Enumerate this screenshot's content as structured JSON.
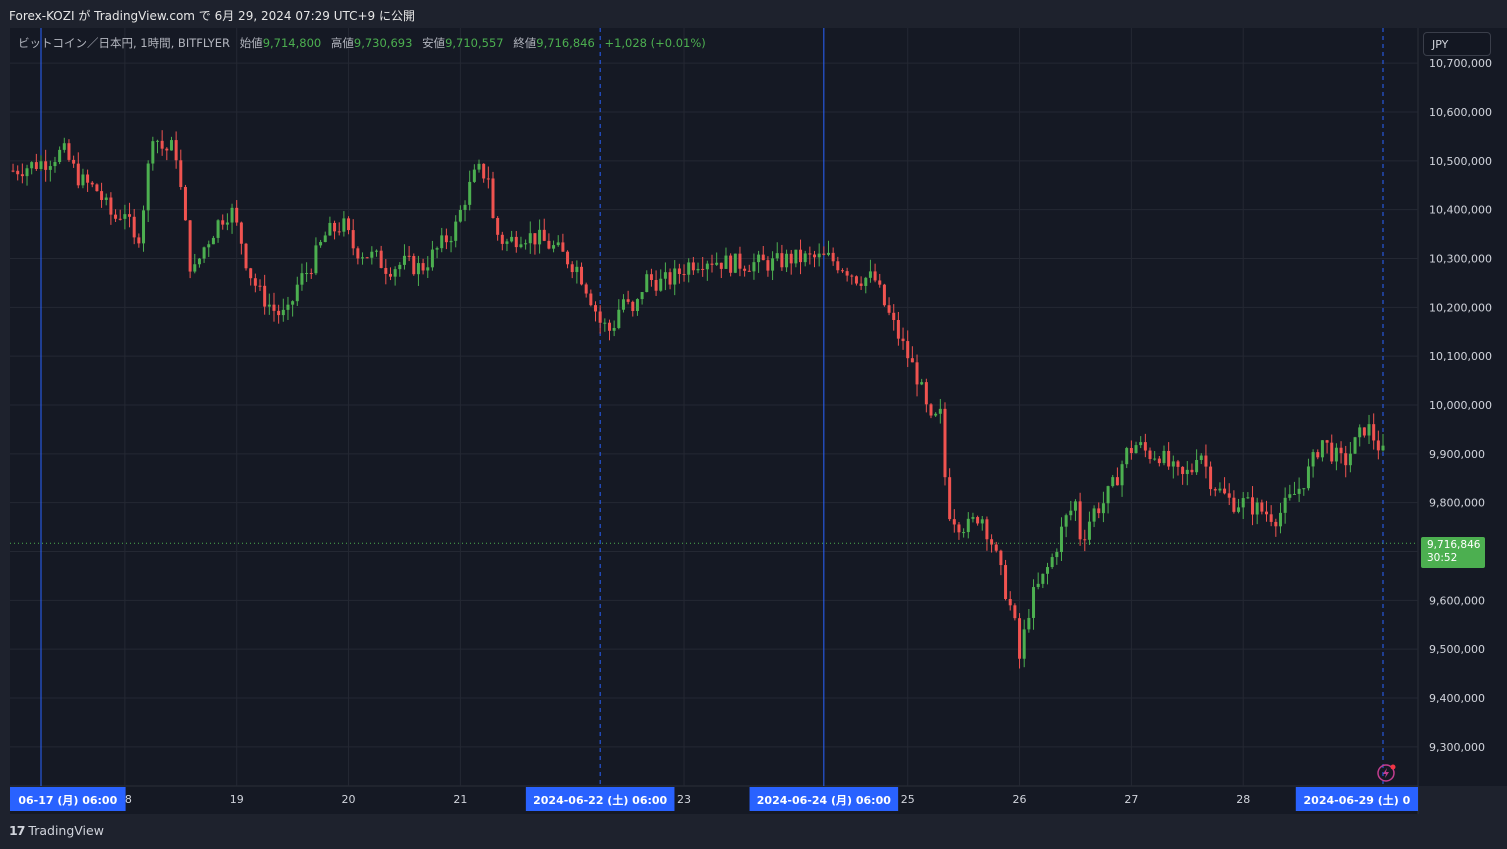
{
  "header": {
    "publisher_line": "Forex-KOZI が TradingView.com で 6月 29, 2024 07:29 UTC+9 に公開"
  },
  "legend": {
    "symbol": "ビットコイン／日本円, 1時間, BITFLYER",
    "open_label": "始値",
    "open": "9,714,800",
    "high_label": "高値",
    "high": "9,730,693",
    "low_label": "安値",
    "low": "9,710,557",
    "close_label": "終値",
    "close": "9,716,846",
    "change": "+1,028 (+0.01%)"
  },
  "currency_button": "JPY",
  "price_tag": {
    "price": "9,716,846",
    "countdown": "30:52"
  },
  "footer": {
    "logo": "17",
    "brand": "TradingView"
  },
  "chart_data": {
    "type": "candlestick",
    "y_axis_labels": [
      "10,700,000",
      "10,600,000",
      "10,500,000",
      "10,400,000",
      "10,300,000",
      "10,200,000",
      "10,100,000",
      "10,000,000",
      "9,900,000",
      "9,800,000",
      "9,700,000",
      "9,600,000",
      "9,500,000",
      "9,400,000",
      "9,300,000"
    ],
    "y_axis_values": [
      10700000,
      10600000,
      10500000,
      10400000,
      10300000,
      10200000,
      10100000,
      10000000,
      9900000,
      9800000,
      9700000,
      9600000,
      9500000,
      9400000,
      9300000
    ],
    "ylim": [
      9225000,
      10730000
    ],
    "x_tick_labels": [
      {
        "label": "18",
        "day": 18
      },
      {
        "label": "19",
        "day": 19
      },
      {
        "label": "20",
        "day": 20
      },
      {
        "label": "21",
        "day": 21
      },
      {
        "label": "23",
        "day": 23
      },
      {
        "label": "25",
        "day": 25
      },
      {
        "label": "26",
        "day": 26
      },
      {
        "label": "27",
        "day": 27
      },
      {
        "label": "28",
        "day": 28
      }
    ],
    "x_highlight_labels": [
      {
        "label": "06-17 (月)  06:00",
        "day": 17.25
      },
      {
        "label": "2024-06-22 (土)  06:00",
        "day": 22.25
      },
      {
        "label": "2024-06-24 (月)  06:00",
        "day": 24.25
      },
      {
        "label": "2024-06-29 (土)  0",
        "day": 29.25
      }
    ],
    "xlim": [
      17.0,
      29.6
    ],
    "vertical_markers": [
      {
        "day": 17.25,
        "style": "solid"
      },
      {
        "day": 22.25,
        "style": "dashed"
      },
      {
        "day": 24.25,
        "style": "solid"
      },
      {
        "day": 29.25,
        "style": "dashed"
      }
    ],
    "last_price": 9716846,
    "up_color": "#4caf50",
    "down_color": "#f05350",
    "path": [
      [
        17.0,
        10480000
      ],
      [
        17.3,
        10500000
      ],
      [
        17.45,
        10520000
      ],
      [
        17.6,
        10460000
      ],
      [
        17.75,
        10440000
      ],
      [
        17.9,
        10380000
      ],
      [
        18.0,
        10400000
      ],
      [
        18.1,
        10320000
      ],
      [
        18.15,
        10380000
      ],
      [
        18.25,
        10560000
      ],
      [
        18.35,
        10520000
      ],
      [
        18.45,
        10530000
      ],
      [
        18.55,
        10350000
      ],
      [
        18.6,
        10260000
      ],
      [
        18.7,
        10320000
      ],
      [
        18.85,
        10380000
      ],
      [
        18.95,
        10400000
      ],
      [
        19.05,
        10330000
      ],
      [
        19.1,
        10280000
      ],
      [
        19.2,
        10230000
      ],
      [
        19.35,
        10190000
      ],
      [
        19.45,
        10180000
      ],
      [
        19.55,
        10250000
      ],
      [
        19.65,
        10280000
      ],
      [
        19.8,
        10350000
      ],
      [
        19.95,
        10370000
      ],
      [
        20.05,
        10320000
      ],
      [
        20.15,
        10310000
      ],
      [
        20.25,
        10300000
      ],
      [
        20.35,
        10280000
      ],
      [
        20.5,
        10290000
      ],
      [
        20.65,
        10280000
      ],
      [
        20.8,
        10320000
      ],
      [
        20.95,
        10360000
      ],
      [
        21.05,
        10430000
      ],
      [
        21.15,
        10480000
      ],
      [
        21.25,
        10470000
      ],
      [
        21.3,
        10360000
      ],
      [
        21.4,
        10330000
      ],
      [
        21.55,
        10350000
      ],
      [
        21.7,
        10340000
      ],
      [
        21.85,
        10320000
      ],
      [
        21.95,
        10300000
      ],
      [
        22.05,
        10280000
      ],
      [
        22.15,
        10230000
      ],
      [
        22.25,
        10170000
      ],
      [
        22.35,
        10150000
      ],
      [
        22.45,
        10220000
      ],
      [
        22.55,
        10180000
      ],
      [
        22.65,
        10260000
      ],
      [
        22.8,
        10250000
      ],
      [
        22.9,
        10260000
      ],
      [
        23.05,
        10290000
      ],
      [
        23.2,
        10300000
      ],
      [
        23.4,
        10290000
      ],
      [
        23.6,
        10290000
      ],
      [
        23.8,
        10290000
      ],
      [
        23.95,
        10300000
      ],
      [
        24.1,
        10300000
      ],
      [
        24.3,
        10300000
      ],
      [
        24.45,
        10280000
      ],
      [
        24.55,
        10260000
      ],
      [
        24.7,
        10260000
      ],
      [
        24.8,
        10200000
      ],
      [
        24.9,
        10150000
      ],
      [
        25.0,
        10100000
      ],
      [
        25.1,
        10050000
      ],
      [
        25.2,
        9960000
      ],
      [
        25.3,
        9980000
      ],
      [
        25.35,
        9790000
      ],
      [
        25.45,
        9760000
      ],
      [
        25.55,
        9750000
      ],
      [
        25.65,
        9780000
      ],
      [
        25.75,
        9720000
      ],
      [
        25.85,
        9640000
      ],
      [
        25.95,
        9560000
      ],
      [
        26.0,
        9480000
      ],
      [
        26.1,
        9600000
      ],
      [
        26.2,
        9640000
      ],
      [
        26.3,
        9690000
      ],
      [
        26.4,
        9760000
      ],
      [
        26.5,
        9800000
      ],
      [
        26.55,
        9720000
      ],
      [
        26.65,
        9780000
      ],
      [
        26.75,
        9800000
      ],
      [
        26.85,
        9840000
      ],
      [
        26.95,
        9900000
      ],
      [
        27.05,
        9920000
      ],
      [
        27.15,
        9900000
      ],
      [
        27.25,
        9900000
      ],
      [
        27.35,
        9870000
      ],
      [
        27.45,
        9850000
      ],
      [
        27.55,
        9870000
      ],
      [
        27.6,
        9920000
      ],
      [
        27.7,
        9850000
      ],
      [
        27.8,
        9820000
      ],
      [
        27.9,
        9800000
      ],
      [
        28.0,
        9800000
      ],
      [
        28.1,
        9790000
      ],
      [
        28.2,
        9780000
      ],
      [
        28.3,
        9770000
      ],
      [
        28.4,
        9800000
      ],
      [
        28.5,
        9830000
      ],
      [
        28.6,
        9870000
      ],
      [
        28.7,
        9930000
      ],
      [
        28.8,
        9900000
      ],
      [
        28.9,
        9880000
      ],
      [
        29.0,
        9920000
      ],
      [
        29.1,
        9960000
      ],
      [
        29.2,
        9920000
      ],
      [
        29.3,
        9880000
      ],
      [
        29.4,
        9880000
      ],
      [
        29.5,
        9860000
      ],
      [
        29.6,
        9830000
      ]
    ]
  }
}
